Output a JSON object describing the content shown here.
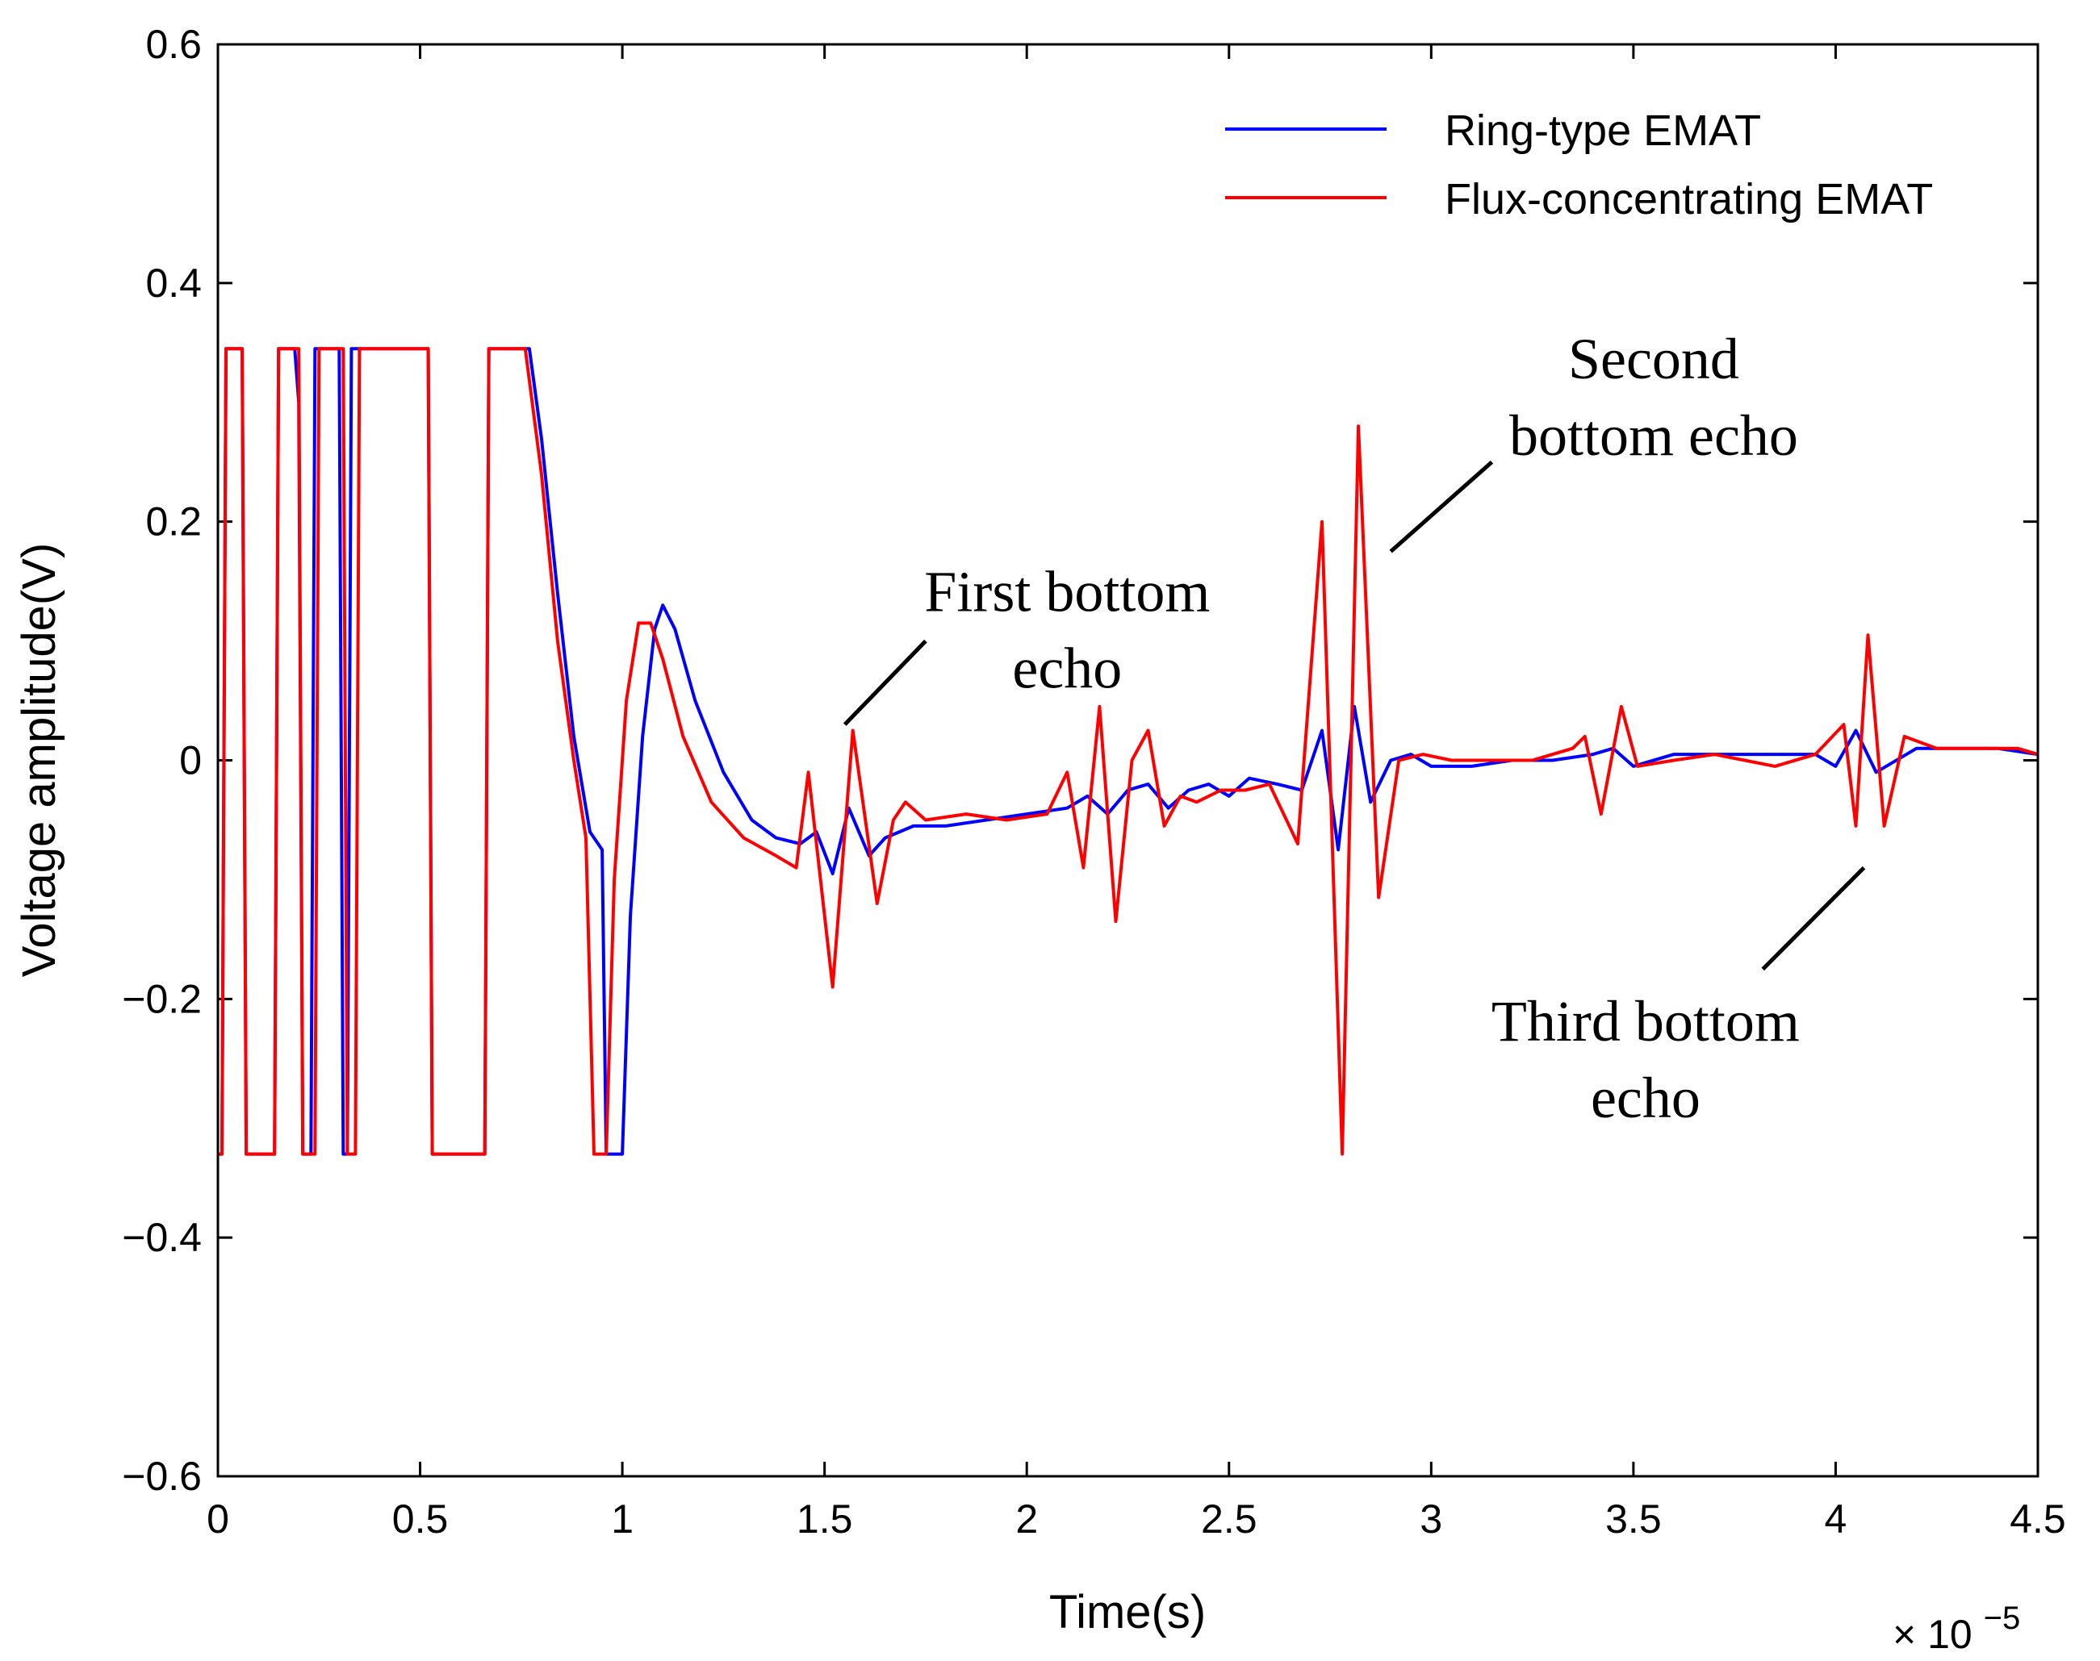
{
  "chart_data": {
    "type": "line",
    "title": "",
    "xlabel": "Time(s)",
    "ylabel": "Voltage amplitude(V)",
    "x_multiplier_label": {
      "prefix": "× 10",
      "exponent": "−5"
    },
    "xlim": [
      0,
      4.5
    ],
    "ylim": [
      -0.6,
      0.6
    ],
    "x_ticks": [
      "0",
      "0.5",
      "1",
      "1.5",
      "2",
      "2.5",
      "3",
      "3.5",
      "4",
      "4.5"
    ],
    "y_ticks": [
      "0.6",
      "0.4",
      "0.2",
      "0",
      "−0.2",
      "−0.4",
      "−0.6"
    ],
    "x_tick_values": [
      0,
      0.5,
      1,
      1.5,
      2,
      2.5,
      3,
      3.5,
      4,
      4.5
    ],
    "y_tick_values": [
      0.6,
      0.4,
      0.2,
      0,
      -0.2,
      -0.4,
      -0.6
    ],
    "grid": false,
    "legend_position": "top-right",
    "series": [
      {
        "name": "Ring-type EMAT",
        "color": "#0000ff",
        "points": [
          [
            0,
            -0.33
          ],
          [
            0.01,
            -0.33
          ],
          [
            0.02,
            0.345
          ],
          [
            0.06,
            0.345
          ],
          [
            0.07,
            -0.33
          ],
          [
            0.14,
            -0.33
          ],
          [
            0.15,
            0.345
          ],
          [
            0.19,
            0.345
          ],
          [
            0.2,
            0.3
          ],
          [
            0.21,
            -0.33
          ],
          [
            0.23,
            -0.33
          ],
          [
            0.24,
            0.345
          ],
          [
            0.3,
            0.345
          ],
          [
            0.31,
            -0.33
          ],
          [
            0.32,
            -0.33
          ],
          [
            0.33,
            0.345
          ],
          [
            0.52,
            0.345
          ],
          [
            0.53,
            -0.33
          ],
          [
            0.66,
            -0.33
          ],
          [
            0.67,
            0.345
          ],
          [
            0.77,
            0.345
          ],
          [
            0.8,
            0.27
          ],
          [
            0.84,
            0.14
          ],
          [
            0.88,
            0.02
          ],
          [
            0.92,
            -0.06
          ],
          [
            0.95,
            -0.075
          ],
          [
            0.96,
            -0.33
          ],
          [
            1.0,
            -0.33
          ],
          [
            1.02,
            -0.13
          ],
          [
            1.05,
            0.02
          ],
          [
            1.08,
            0.11
          ],
          [
            1.1,
            0.13
          ],
          [
            1.13,
            0.11
          ],
          [
            1.18,
            0.05
          ],
          [
            1.25,
            -0.01
          ],
          [
            1.32,
            -0.05
          ],
          [
            1.38,
            -0.065
          ],
          [
            1.44,
            -0.07
          ],
          [
            1.48,
            -0.06
          ],
          [
            1.52,
            -0.095
          ],
          [
            1.56,
            -0.04
          ],
          [
            1.61,
            -0.08
          ],
          [
            1.65,
            -0.065
          ],
          [
            1.72,
            -0.055
          ],
          [
            1.8,
            -0.055
          ],
          [
            1.9,
            -0.05
          ],
          [
            2.0,
            -0.045
          ],
          [
            2.1,
            -0.04
          ],
          [
            2.15,
            -0.03
          ],
          [
            2.2,
            -0.045
          ],
          [
            2.25,
            -0.025
          ],
          [
            2.3,
            -0.02
          ],
          [
            2.35,
            -0.04
          ],
          [
            2.4,
            -0.025
          ],
          [
            2.45,
            -0.02
          ],
          [
            2.5,
            -0.03
          ],
          [
            2.55,
            -0.015
          ],
          [
            2.62,
            -0.02
          ],
          [
            2.68,
            -0.025
          ],
          [
            2.73,
            0.025
          ],
          [
            2.77,
            -0.075
          ],
          [
            2.81,
            0.045
          ],
          [
            2.85,
            -0.035
          ],
          [
            2.9,
            0.0
          ],
          [
            2.95,
            0.005
          ],
          [
            3.0,
            -0.005
          ],
          [
            3.1,
            -0.005
          ],
          [
            3.2,
            0.0
          ],
          [
            3.3,
            0.0
          ],
          [
            3.4,
            0.005
          ],
          [
            3.45,
            0.01
          ],
          [
            3.5,
            -0.005
          ],
          [
            3.6,
            0.005
          ],
          [
            3.8,
            0.005
          ],
          [
            3.95,
            0.005
          ],
          [
            4.0,
            -0.005
          ],
          [
            4.05,
            0.025
          ],
          [
            4.1,
            -0.01
          ],
          [
            4.2,
            0.01
          ],
          [
            4.3,
            0.01
          ],
          [
            4.4,
            0.01
          ],
          [
            4.5,
            0.005
          ]
        ]
      },
      {
        "name": "Flux-concentrating EMAT",
        "color": "#ff0000",
        "points": [
          [
            0,
            -0.33
          ],
          [
            0.01,
            -0.33
          ],
          [
            0.02,
            0.345
          ],
          [
            0.06,
            0.345
          ],
          [
            0.07,
            -0.33
          ],
          [
            0.14,
            -0.33
          ],
          [
            0.15,
            0.345
          ],
          [
            0.2,
            0.345
          ],
          [
            0.21,
            -0.33
          ],
          [
            0.24,
            -0.33
          ],
          [
            0.25,
            0.345
          ],
          [
            0.31,
            0.345
          ],
          [
            0.32,
            -0.33
          ],
          [
            0.34,
            -0.33
          ],
          [
            0.35,
            0.345
          ],
          [
            0.52,
            0.345
          ],
          [
            0.53,
            -0.33
          ],
          [
            0.66,
            -0.33
          ],
          [
            0.67,
            0.345
          ],
          [
            0.76,
            0.345
          ],
          [
            0.8,
            0.24
          ],
          [
            0.84,
            0.1
          ],
          [
            0.88,
            0.0
          ],
          [
            0.91,
            -0.065
          ],
          [
            0.93,
            -0.33
          ],
          [
            0.96,
            -0.33
          ],
          [
            0.98,
            -0.1
          ],
          [
            1.01,
            0.05
          ],
          [
            1.04,
            0.115
          ],
          [
            1.07,
            0.115
          ],
          [
            1.1,
            0.085
          ],
          [
            1.15,
            0.02
          ],
          [
            1.22,
            -0.035
          ],
          [
            1.3,
            -0.065
          ],
          [
            1.38,
            -0.08
          ],
          [
            1.43,
            -0.09
          ],
          [
            1.46,
            -0.01
          ],
          [
            1.52,
            -0.19
          ],
          [
            1.57,
            0.025
          ],
          [
            1.63,
            -0.12
          ],
          [
            1.67,
            -0.05
          ],
          [
            1.7,
            -0.035
          ],
          [
            1.75,
            -0.05
          ],
          [
            1.85,
            -0.045
          ],
          [
            1.95,
            -0.05
          ],
          [
            2.05,
            -0.045
          ],
          [
            2.1,
            -0.01
          ],
          [
            2.14,
            -0.09
          ],
          [
            2.18,
            0.045
          ],
          [
            2.22,
            -0.135
          ],
          [
            2.26,
            0.0
          ],
          [
            2.3,
            0.025
          ],
          [
            2.34,
            -0.055
          ],
          [
            2.38,
            -0.03
          ],
          [
            2.42,
            -0.035
          ],
          [
            2.48,
            -0.025
          ],
          [
            2.54,
            -0.025
          ],
          [
            2.6,
            -0.02
          ],
          [
            2.67,
            -0.07
          ],
          [
            2.73,
            0.2
          ],
          [
            2.78,
            -0.33
          ],
          [
            2.82,
            0.28
          ],
          [
            2.87,
            -0.115
          ],
          [
            2.92,
            0.0
          ],
          [
            2.98,
            0.005
          ],
          [
            3.05,
            0.0
          ],
          [
            3.15,
            0.0
          ],
          [
            3.25,
            0.0
          ],
          [
            3.35,
            0.01
          ],
          [
            3.38,
            0.02
          ],
          [
            3.42,
            -0.045
          ],
          [
            3.47,
            0.045
          ],
          [
            3.51,
            -0.005
          ],
          [
            3.6,
            0.0
          ],
          [
            3.7,
            0.005
          ],
          [
            3.85,
            -0.005
          ],
          [
            3.95,
            0.005
          ],
          [
            4.02,
            0.03
          ],
          [
            4.05,
            -0.055
          ],
          [
            4.08,
            0.105
          ],
          [
            4.12,
            -0.055
          ],
          [
            4.17,
            0.02
          ],
          [
            4.25,
            0.01
          ],
          [
            4.35,
            0.01
          ],
          [
            4.45,
            0.01
          ],
          [
            4.5,
            0.005
          ]
        ]
      }
    ],
    "annotations": [
      {
        "lines": [
          "First bottom",
          "echo"
        ],
        "text_at": [
          2.1,
          0.125
        ],
        "pointer_from": [
          1.75,
          0.1
        ],
        "pointer_to": [
          1.55,
          0.03
        ]
      },
      {
        "lines": [
          "Second",
          "bottom echo"
        ],
        "text_at": [
          3.55,
          0.32
        ],
        "pointer_from": [
          3.15,
          0.25
        ],
        "pointer_to": [
          2.9,
          0.175
        ]
      },
      {
        "lines": [
          "Third bottom",
          "echo"
        ],
        "text_at": [
          3.53,
          -0.235
        ],
        "pointer_from": [
          4.07,
          -0.09
        ],
        "pointer_to": [
          3.82,
          -0.175
        ]
      }
    ]
  }
}
